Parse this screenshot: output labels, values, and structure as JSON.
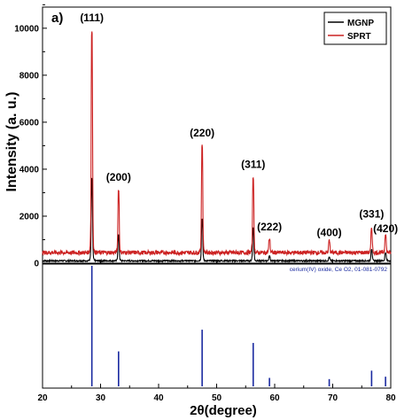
{
  "chart_data": {
    "type": "line",
    "panel_label": "a)",
    "xlabel": "2θ(degree)",
    "ylabel": "Intensity (a. u.)",
    "xlim": [
      20,
      80
    ],
    "ylim": [
      0,
      10900
    ],
    "xticks": [
      "20",
      "30",
      "40",
      "50",
      "60",
      "70",
      "80"
    ],
    "yticks": [
      "0",
      "2000",
      "4000",
      "6000",
      "8000",
      "10000"
    ],
    "legend": {
      "position": "top-right",
      "entries": [
        {
          "name": "MGNP",
          "color": "#000000"
        },
        {
          "name": "SPRT",
          "color": "#cc2222"
        }
      ]
    },
    "series": [
      {
        "name": "MGNP",
        "color": "#000000",
        "baseline": 100,
        "peaks": [
          {
            "x": 28.5,
            "y": 3600
          },
          {
            "x": 33.1,
            "y": 1200
          },
          {
            "x": 47.5,
            "y": 1900
          },
          {
            "x": 56.3,
            "y": 1500
          },
          {
            "x": 59.1,
            "y": 300
          },
          {
            "x": 69.4,
            "y": 250
          },
          {
            "x": 76.7,
            "y": 600
          },
          {
            "x": 79.1,
            "y": 450
          }
        ]
      },
      {
        "name": "SPRT",
        "color": "#cc2222",
        "baseline": 450,
        "peaks": [
          {
            "x": 28.5,
            "y": 9950
          },
          {
            "x": 33.1,
            "y": 3150
          },
          {
            "x": 47.5,
            "y": 5050
          },
          {
            "x": 56.3,
            "y": 3700
          },
          {
            "x": 59.1,
            "y": 1050
          },
          {
            "x": 69.4,
            "y": 950
          },
          {
            "x": 76.7,
            "y": 1500
          },
          {
            "x": 79.1,
            "y": 1250
          }
        ]
      }
    ],
    "peak_labels": [
      {
        "text": "(111)",
        "x": 28.5,
        "y": 10300
      },
      {
        "text": "(200)",
        "x": 33.1,
        "y": 3500
      },
      {
        "text": "(220)",
        "x": 47.5,
        "y": 5400
      },
      {
        "text": "(311)",
        "x": 56.3,
        "y": 4050
      },
      {
        "text": "(222)",
        "x": 59.1,
        "y": 1400
      },
      {
        "text": "(400)",
        "x": 69.4,
        "y": 1150
      },
      {
        "text": "(331)",
        "x": 76.7,
        "y": 1950
      },
      {
        "text": "(420)",
        "x": 79.1,
        "y": 1320
      }
    ],
    "reference": {
      "label": "cerium(IV) oxide, Ce O2, 01-081-0792",
      "color": "#1a2aa0",
      "lines": [
        {
          "x": 28.5,
          "rel": 100
        },
        {
          "x": 33.1,
          "rel": 29
        },
        {
          "x": 47.5,
          "rel": 47
        },
        {
          "x": 56.3,
          "rel": 36
        },
        {
          "x": 59.1,
          "rel": 7
        },
        {
          "x": 69.4,
          "rel": 6
        },
        {
          "x": 76.7,
          "rel": 13
        },
        {
          "x": 79.1,
          "rel": 8
        }
      ]
    }
  }
}
